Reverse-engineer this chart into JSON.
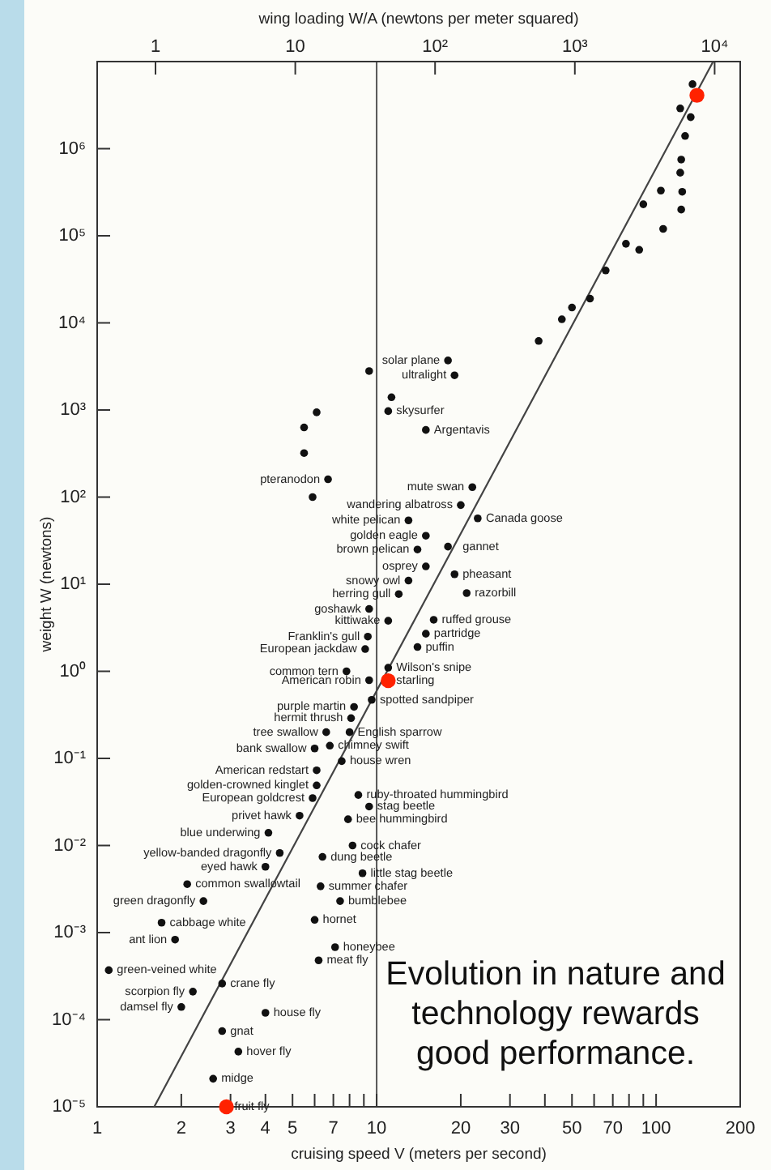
{
  "chart_data": {
    "type": "scatter",
    "xlabel": "cruising speed V (meters per second)",
    "ylabel": "weight W (newtons)",
    "x2label": "wing loading W/A (newtons per meter squared)",
    "xlim": [
      1,
      200
    ],
    "xticks": [
      1,
      2,
      3,
      4,
      5,
      {
        "value": 6,
        "label": null
      },
      7,
      {
        "value": 8,
        "label": null
      },
      {
        "value": 9,
        "label": null
      },
      10,
      20,
      30,
      {
        "value": 40,
        "label": null
      },
      50,
      {
        "value": 60,
        "label": null
      },
      70,
      {
        "value": 80,
        "label": null
      },
      {
        "value": 90,
        "label": null
      },
      100,
      200
    ],
    "ylim": [
      1e-05,
      10000000.0
    ],
    "yticks": [
      {
        "value": 1e-05,
        "label": "10⁻⁵"
      },
      {
        "value": 0.0001,
        "label": "10⁻⁴"
      },
      {
        "value": 0.001,
        "label": "10⁻³"
      },
      {
        "value": 0.01,
        "label": "10⁻²"
      },
      {
        "value": 0.1,
        "label": "10⁻¹"
      },
      {
        "value": 1,
        "label": "10⁰"
      },
      {
        "value": 10,
        "label": "10¹"
      },
      {
        "value": 100,
        "label": "10²"
      },
      {
        "value": 1000,
        "label": "10³"
      },
      {
        "value": 10000,
        "label": "10⁴"
      },
      {
        "value": 100000,
        "label": "10⁵"
      },
      {
        "value": 1000000,
        "label": "10⁶"
      }
    ],
    "log": "xy",
    "grid": false,
    "marker": "circle",
    "series": [
      {
        "color": "#111111",
        "x": [
          135,
          122,
          133,
          127,
          123,
          122,
          104,
          124,
          90,
          123,
          106,
          78,
          87,
          66,
          58,
          50,
          46,
          38,
          18,
          19,
          9.4,
          11.3,
          11,
          15,
          6.1,
          5.5,
          5.5,
          6.7,
          5.9,
          22,
          20,
          13,
          23,
          15,
          14,
          18,
          15,
          19,
          13,
          21,
          12,
          9.4,
          11,
          16,
          15,
          9.3,
          14,
          9.1,
          11,
          7.8,
          9.4,
          9.6,
          8.3,
          8.1,
          6.6,
          8.0,
          6.0,
          6.8,
          7.5,
          6.1,
          6.1,
          5.9,
          8.6,
          9.4,
          5.3,
          7.9,
          4.1,
          8.2,
          4.5,
          6.4,
          4.0,
          8.9,
          2.1,
          6.3,
          2.4,
          7.4,
          1.7,
          6.0,
          1.9,
          7.1,
          6.2,
          1.1,
          2.8,
          2.2,
          2.0,
          4.0,
          2.8,
          3.2,
          2.6
        ],
        "values": [
          5500000.0,
          2900000.0,
          2300000.0,
          1400000.0,
          750000.0,
          530000.0,
          330000.0,
          320000.0,
          230000.0,
          200000.0,
          120000.0,
          81000.0,
          69000.0,
          40000.0,
          19000.0,
          15000.0,
          11000.0,
          6200,
          3700,
          2500,
          2800,
          1400,
          970,
          590,
          940,
          630,
          320,
          160,
          100,
          130,
          81,
          54,
          57,
          36,
          25,
          27,
          16,
          13,
          11,
          7.9,
          7.7,
          5.2,
          3.8,
          3.9,
          2.7,
          2.5,
          1.9,
          1.8,
          1.1,
          1.0,
          0.79,
          0.47,
          0.39,
          0.29,
          0.2,
          0.2,
          0.13,
          0.14,
          0.093,
          0.073,
          0.049,
          0.035,
          0.038,
          0.028,
          0.022,
          0.02,
          0.014,
          0.01,
          0.0082,
          0.0074,
          0.0057,
          0.0048,
          0.0036,
          0.0034,
          0.0023,
          0.0023,
          0.0013,
          0.0014,
          0.00083,
          0.00068,
          0.00048,
          0.00037,
          0.00026,
          0.00021,
          0.00014,
          0.00012,
          7.4e-05,
          4.3e-05,
          2.1e-05
        ]
      },
      {
        "color": "#ff2200",
        "x": [
          140,
          11,
          2.9
        ],
        "values": [
          4100000.0,
          0.78,
          1e-05
        ]
      },
      {
        "type": "line",
        "color": "#444444",
        "marker": "none",
        "x": [
          1.6,
          160
        ],
        "values": [
          1e-05,
          10000000.0
        ]
      }
    ],
    "ref_lines": [
      {
        "axis": "x",
        "value": 10,
        "color": "#555555"
      }
    ],
    "annotations": [
      {
        "text": "solar plane",
        "x": 18,
        "y": 3700
      },
      {
        "text": "ultralight",
        "x": 19,
        "y": 2500
      },
      {
        "text": "skysurfer",
        "x": 11,
        "y": 970
      },
      {
        "text": "Argentavis",
        "x": 15,
        "y": 590
      },
      {
        "text": "pteranodon",
        "x": 6.7,
        "y": 160
      },
      {
        "text": "mute swan",
        "x": 22,
        "y": 130
      },
      {
        "text": "wandering albatross",
        "x": 20,
        "y": 81
      },
      {
        "text": "white pelican",
        "x": 13,
        "y": 54
      },
      {
        "text": "Canada goose",
        "x": 23,
        "y": 57
      },
      {
        "text": "golden eagle",
        "x": 15,
        "y": 36
      },
      {
        "text": "brown pelican",
        "x": 14,
        "y": 25
      },
      {
        "text": "gannet",
        "x": 18,
        "y": 27
      },
      {
        "text": "osprey",
        "x": 15,
        "y": 16
      },
      {
        "text": "pheasant",
        "x": 19,
        "y": 13
      },
      {
        "text": "snowy owl",
        "x": 13,
        "y": 11
      },
      {
        "text": "razorbill",
        "x": 21,
        "y": 7.9
      },
      {
        "text": "herring gull",
        "x": 12,
        "y": 7.7
      },
      {
        "text": "goshawk",
        "x": 9.4,
        "y": 5.2
      },
      {
        "text": "kittiwake",
        "x": 11,
        "y": 3.8
      },
      {
        "text": "ruffed grouse",
        "x": 16,
        "y": 3.9
      },
      {
        "text": "partridge",
        "x": 15,
        "y": 2.7
      },
      {
        "text": "Franklin's gull",
        "x": 9.3,
        "y": 2.5
      },
      {
        "text": "puffin",
        "x": 14,
        "y": 1.9
      },
      {
        "text": "European jackdaw",
        "x": 9.1,
        "y": 1.8
      },
      {
        "text": "Wilson's snipe",
        "x": 11,
        "y": 1.1
      },
      {
        "text": "common tern",
        "x": 7.8,
        "y": 1.0
      },
      {
        "text": "American robin",
        "x": 9.4,
        "y": 0.79
      },
      {
        "text": "starling",
        "x": 11,
        "y": 0.78
      },
      {
        "text": "spotted sandpiper",
        "x": 9.6,
        "y": 0.47
      },
      {
        "text": "purple martin",
        "x": 8.3,
        "y": 0.39
      },
      {
        "text": "hermit thrush",
        "x": 8.1,
        "y": 0.29
      },
      {
        "text": "tree swallow",
        "x": 6.6,
        "y": 0.2
      },
      {
        "text": "English sparrow",
        "x": 8.0,
        "y": 0.2
      },
      {
        "text": "bank swallow",
        "x": 6.0,
        "y": 0.13
      },
      {
        "text": "chimney swift",
        "x": 6.8,
        "y": 0.14
      },
      {
        "text": "house wren",
        "x": 7.5,
        "y": 0.093
      },
      {
        "text": "American redstart",
        "x": 6.1,
        "y": 0.073
      },
      {
        "text": "golden-crowned kinglet",
        "x": 6.1,
        "y": 0.049
      },
      {
        "text": "European goldcrest",
        "x": 5.9,
        "y": 0.035
      },
      {
        "text": "ruby-throated hummingbird",
        "x": 8.6,
        "y": 0.038
      },
      {
        "text": "stag beetle",
        "x": 9.4,
        "y": 0.028
      },
      {
        "text": "privet hawk",
        "x": 5.3,
        "y": 0.022
      },
      {
        "text": "bee hummingbird",
        "x": 7.9,
        "y": 0.02
      },
      {
        "text": "blue underwing",
        "x": 4.1,
        "y": 0.014
      },
      {
        "text": "cock chafer",
        "x": 8.2,
        "y": 0.01
      },
      {
        "text": "yellow-banded dragonfly",
        "x": 4.5,
        "y": 0.0082
      },
      {
        "text": "dung beetle",
        "x": 6.4,
        "y": 0.0074
      },
      {
        "text": "eyed hawk",
        "x": 4.0,
        "y": 0.0057
      },
      {
        "text": "little stag beetle",
        "x": 8.9,
        "y": 0.0048
      },
      {
        "text": "common swallowtail",
        "x": 2.1,
        "y": 0.0036
      },
      {
        "text": "summer chafer",
        "x": 6.3,
        "y": 0.0034
      },
      {
        "text": "green dragonfly",
        "x": 2.4,
        "y": 0.0023
      },
      {
        "text": "bumblebee",
        "x": 7.4,
        "y": 0.0023
      },
      {
        "text": "cabbage white",
        "x": 1.7,
        "y": 0.0013
      },
      {
        "text": "hornet",
        "x": 6.0,
        "y": 0.0014
      },
      {
        "text": "ant lion",
        "x": 1.9,
        "y": 0.00083
      },
      {
        "text": "honeybee",
        "x": 7.1,
        "y": 0.00068
      },
      {
        "text": "meat fly",
        "x": 6.2,
        "y": 0.00048
      },
      {
        "text": "green-veined white",
        "x": 1.1,
        "y": 0.00037
      },
      {
        "text": "crane fly",
        "x": 2.8,
        "y": 0.00026
      },
      {
        "text": "scorpion fly",
        "x": 2.2,
        "y": 0.00021
      },
      {
        "text": "damsel fly",
        "x": 2.0,
        "y": 0.00014
      },
      {
        "text": "house fly",
        "x": 4.0,
        "y": 0.00012
      },
      {
        "text": "gnat",
        "x": 2.8,
        "y": 7.4e-05
      },
      {
        "text": "hover fly",
        "x": 3.2,
        "y": 4.3e-05
      },
      {
        "text": "midge",
        "x": 2.6,
        "y": 2.1e-05
      },
      {
        "text": "fruit fly",
        "x": 2.9,
        "y": 1e-05
      },
      "1",
      "10",
      "10²",
      "10³",
      "10⁴",
      "Evolution in nature and technology rewards good performance."
    ]
  }
}
